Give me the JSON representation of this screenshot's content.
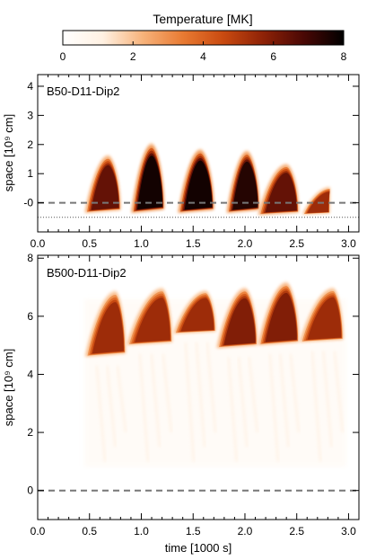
{
  "colorbar": {
    "title": "Temperature [MK]",
    "ticks": [
      0,
      2,
      4,
      6,
      8
    ],
    "range": [
      0,
      8
    ],
    "colors": [
      "#ffffff",
      "#fff1e2",
      "#f7b27a",
      "#e87a32",
      "#c94a10",
      "#8e2207",
      "#4a0805",
      "#000000"
    ]
  },
  "chart_data": [
    {
      "type": "heatmap",
      "panel_label": "B50-D11-Dip2",
      "xlabel": "",
      "ylabel": "space [10⁹ cm]",
      "xlim": [
        0.0,
        3.1
      ],
      "ylim": [
        -1.0,
        4.4
      ],
      "xticks": [
        "0.0",
        "0.5",
        "1.0",
        "1.5",
        "2.0",
        "2.5",
        "3.0"
      ],
      "yticks": [
        "-0",
        "1",
        "2",
        "3",
        "4"
      ],
      "reference_lines": [
        {
          "y": 0.0,
          "style": "dashed"
        },
        {
          "y": -0.5,
          "style": "dotted"
        }
      ],
      "events": [
        {
          "start": 0.45,
          "peak_t": 0.68,
          "end": 0.8,
          "base": -0.35,
          "top": 1.65,
          "tmax_MK": 6.5
        },
        {
          "start": 0.9,
          "peak_t": 1.1,
          "end": 1.22,
          "base": -0.35,
          "top": 2.05,
          "tmax_MK": 7.8
        },
        {
          "start": 1.35,
          "peak_t": 1.57,
          "end": 1.7,
          "base": -0.35,
          "top": 1.85,
          "tmax_MK": 7.8
        },
        {
          "start": 1.82,
          "peak_t": 2.02,
          "end": 2.14,
          "base": -0.35,
          "top": 1.8,
          "tmax_MK": 7.5
        },
        {
          "start": 2.12,
          "peak_t": 2.4,
          "end": 2.52,
          "base": -0.42,
          "top": 1.35,
          "tmax_MK": 6.5
        },
        {
          "start": 2.55,
          "peak_t": 2.82,
          "end": 2.82,
          "base": -0.4,
          "top": 0.55,
          "tmax_MK": 5.5
        }
      ]
    },
    {
      "type": "heatmap",
      "panel_label": "B500-D11-Dip2",
      "xlabel": "time [1000 s]",
      "ylabel": "space [10⁹ cm]",
      "xlim": [
        0.0,
        3.1
      ],
      "ylim": [
        -1.0,
        8.1
      ],
      "xticks": [
        "0.0",
        "0.5",
        "1.0",
        "1.5",
        "2.0",
        "2.5",
        "3.0"
      ],
      "yticks": [
        "0",
        "2",
        "4",
        "6",
        "8"
      ],
      "reference_lines": [
        {
          "y": 0.0,
          "style": "dashed"
        }
      ],
      "events": [
        {
          "start": 0.45,
          "peak_t": 0.75,
          "end": 0.85,
          "base": 4.6,
          "top": 6.9,
          "tmax_MK": 5.5
        },
        {
          "start": 0.85,
          "peak_t": 1.2,
          "end": 1.3,
          "base": 5.0,
          "top": 7.0,
          "tmax_MK": 5.5
        },
        {
          "start": 1.3,
          "peak_t": 1.62,
          "end": 1.72,
          "base": 5.4,
          "top": 6.9,
          "tmax_MK": 5.5
        },
        {
          "start": 1.72,
          "peak_t": 2.0,
          "end": 2.12,
          "base": 4.9,
          "top": 7.0,
          "tmax_MK": 6.0
        },
        {
          "start": 2.12,
          "peak_t": 2.4,
          "end": 2.52,
          "base": 5.0,
          "top": 7.2,
          "tmax_MK": 6.0
        },
        {
          "start": 2.52,
          "peak_t": 2.85,
          "end": 2.95,
          "base": 5.1,
          "top": 7.0,
          "tmax_MK": 5.5
        }
      ]
    }
  ]
}
